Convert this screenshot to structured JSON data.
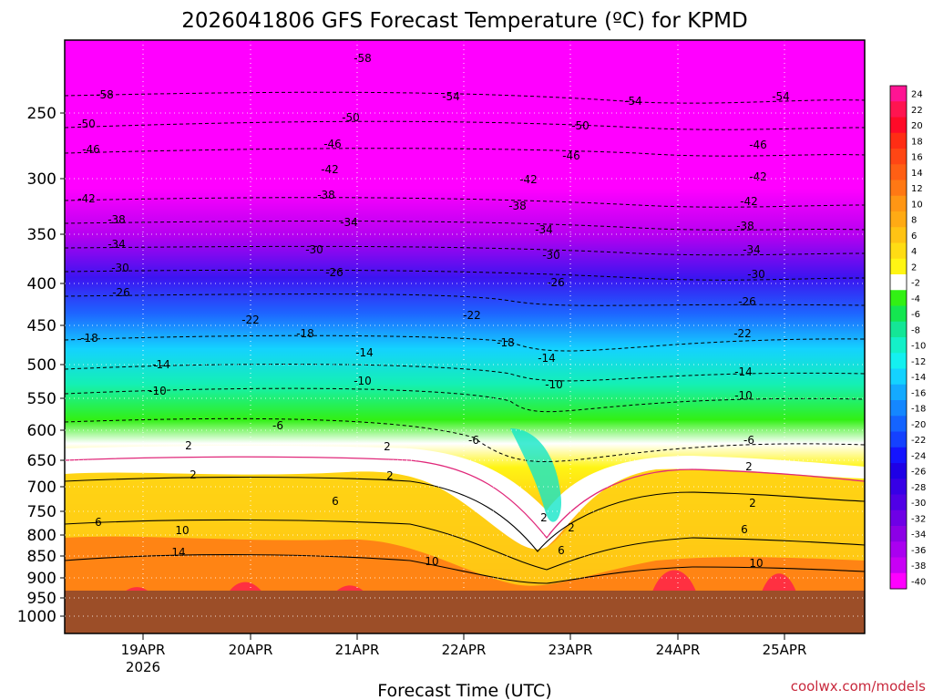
{
  "chart_data": {
    "type": "heatmap",
    "title": "2026041806 GFS Forecast Temperature (ºC) for KPMD",
    "xlabel": "Forecast Time (UTC)",
    "ylabel": "",
    "credit": "coolwx.com/models",
    "y_ticks": [
      "250",
      "300",
      "350",
      "400",
      "450",
      "500",
      "550",
      "600",
      "650",
      "700",
      "750",
      "800",
      "850",
      "900",
      "950",
      "1000"
    ],
    "x_ticks": [
      {
        "label": "19APR",
        "sub": "2026"
      },
      {
        "label": "20APR",
        "sub": ""
      },
      {
        "label": "21APR",
        "sub": ""
      },
      {
        "label": "22APR",
        "sub": ""
      },
      {
        "label": "23APR",
        "sub": ""
      },
      {
        "label": "24APR",
        "sub": ""
      },
      {
        "label": "25APR",
        "sub": ""
      }
    ],
    "colorbar": {
      "labels": [
        "24",
        "22",
        "20",
        "18",
        "16",
        "14",
        "12",
        "10",
        "8",
        "6",
        "4",
        "2",
        "-2",
        "-4",
        "-6",
        "-8",
        "-10",
        "-12",
        "-14",
        "-16",
        "-18",
        "-20",
        "-22",
        "-24",
        "-26",
        "-28",
        "-30",
        "-32",
        "-34",
        "-36",
        "-38",
        "-40"
      ],
      "colors": [
        "#ff1493",
        "#ff1450",
        "#ff0a28",
        "#ff2d14",
        "#ff4614",
        "#ff5f14",
        "#ff7814",
        "#ff9614",
        "#ffaa14",
        "#ffc314",
        "#ffdc14",
        "#fff514",
        "#ffffff",
        "#32f014",
        "#14e650",
        "#14e696",
        "#14f0c8",
        "#14f0f0",
        "#14d2ff",
        "#14aaff",
        "#1487ff",
        "#1464ff",
        "#1441ff",
        "#1414ff",
        "#1e00e6",
        "#3700e6",
        "#5000e6",
        "#6e00e6",
        "#8c00e6",
        "#aa00f0",
        "#c800f5",
        "#ff00ff"
      ]
    },
    "isotherm_labels": [
      "-58",
      "-54",
      "-50",
      "-46",
      "-42",
      "-38",
      "-34",
      "-30",
      "-26",
      "-22",
      "-18",
      "-14",
      "-10",
      "-6",
      "2",
      "6",
      "10",
      "14"
    ],
    "ground_color": "#9c4e28",
    "magenta_top": "#ff00ff"
  }
}
